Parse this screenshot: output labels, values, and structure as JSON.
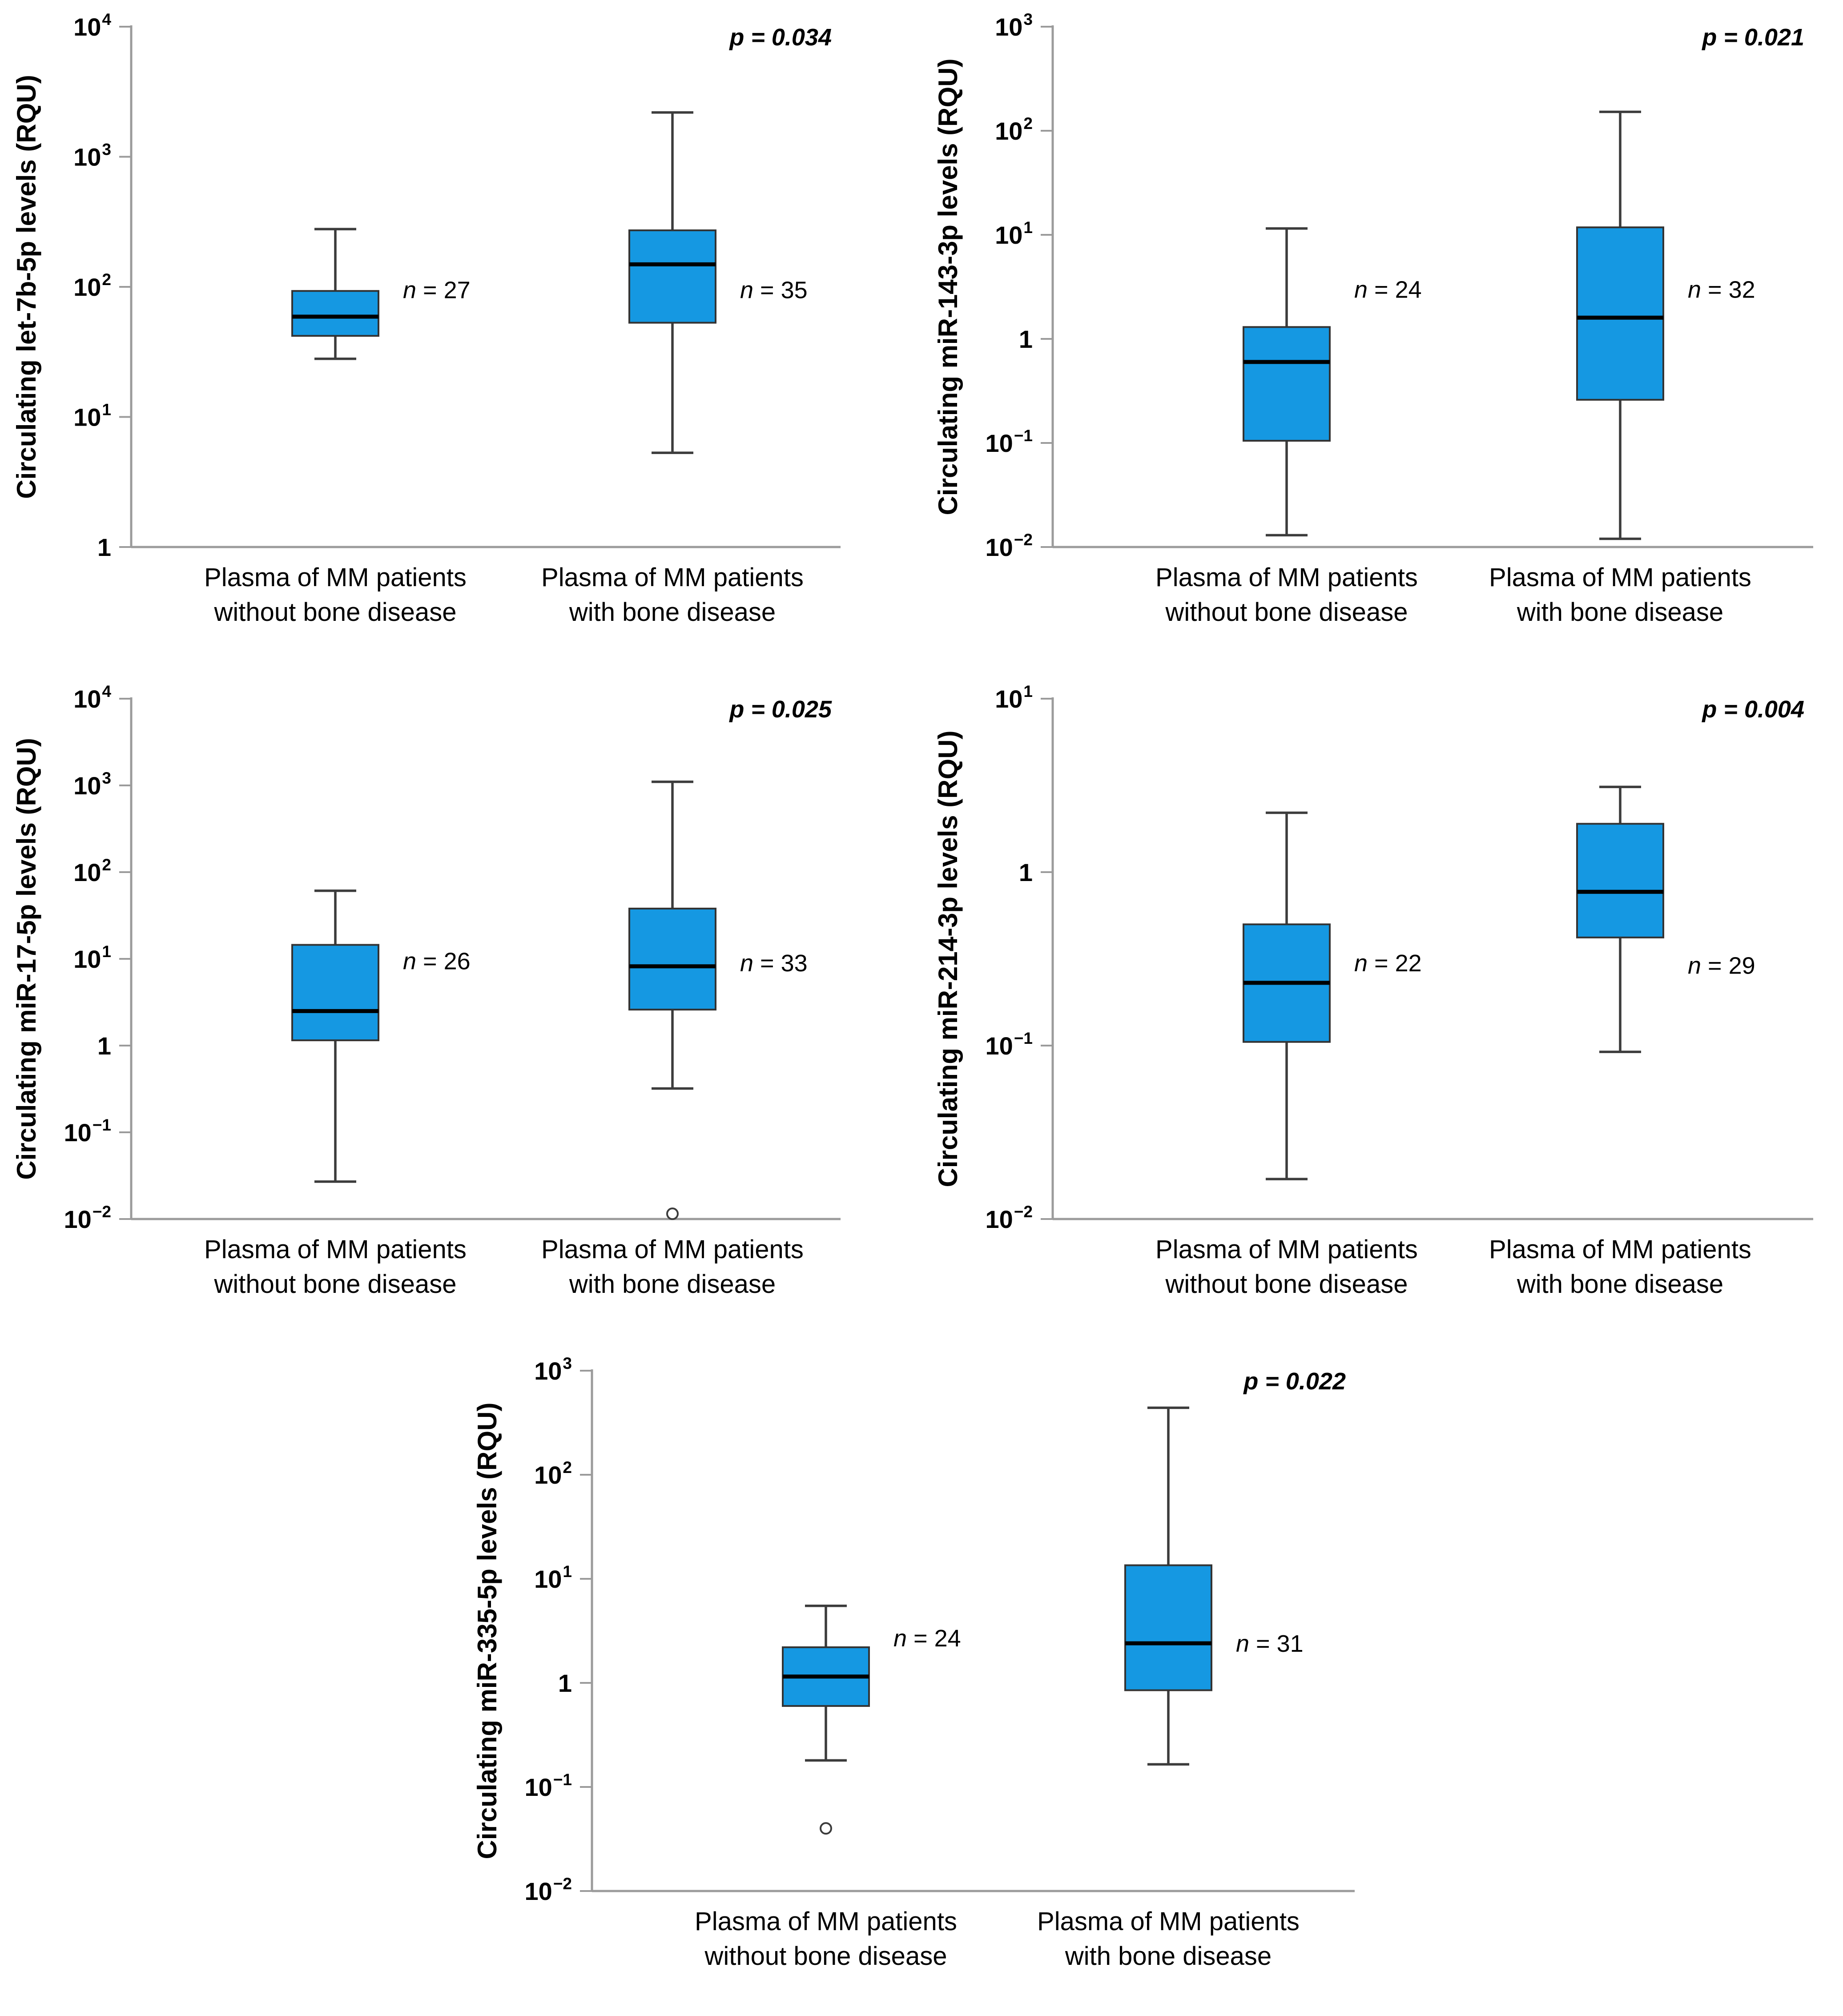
{
  "colors": {
    "box_fill": "#1598E2",
    "box_stroke": "#333333",
    "median": "#000000",
    "whisker": "#3C3C3C",
    "axis": "#9B9B9B",
    "text": "#000000",
    "outlier_fill": "#FFFFFF"
  },
  "chart_data": [
    {
      "type": "box",
      "ylabel": "Circulating let-7b-5p levels (RQU)",
      "p_label": "p = 0.034",
      "y_log_min": 0,
      "y_log_max": 4,
      "ytick_exponents": [
        4,
        3,
        2,
        1,
        0
      ],
      "layout": {
        "plot_right": 1890,
        "group_centers": [
          754,
          1512
        ],
        "legend": "none",
        "grid": "off"
      },
      "groups": [
        {
          "category_lines": [
            "Plasma of MM patients",
            "without bone disease"
          ],
          "n_label": "n = 27",
          "n_anchor_value": 95,
          "stats": {
            "whisker_low": 28,
            "q1": 42,
            "median": 59,
            "q3": 93,
            "whisker_high": 278
          },
          "outliers": []
        },
        {
          "category_lines": [
            "Plasma of MM patients",
            "with bone disease"
          ],
          "n_label": "n = 35",
          "n_anchor_value": 95,
          "stats": {
            "whisker_low": 5.3,
            "q1": 53,
            "median": 149,
            "q3": 272,
            "whisker_high": 2190
          },
          "outliers": []
        }
      ]
    },
    {
      "type": "box",
      "ylabel": "Circulating miR-143-3p levels (RQU)",
      "p_label": "p = 0.021",
      "y_log_min": -2,
      "y_log_max": 3,
      "ytick_exponents": [
        3,
        2,
        1,
        0,
        -1,
        -2
      ],
      "layout": {
        "plot_right": 2005,
        "group_centers": [
          821,
          1571
        ],
        "legend": "none",
        "grid": "off"
      },
      "groups": [
        {
          "category_lines": [
            "Plasma of MM patients",
            "without bone disease"
          ],
          "n_label": "n = 24",
          "n_anchor_value": 3.0,
          "stats": {
            "whisker_low": 0.013,
            "q1": 0.105,
            "median": 0.6,
            "q3": 1.3,
            "whisker_high": 11.5
          },
          "outliers": []
        },
        {
          "category_lines": [
            "Plasma of MM patients",
            "with bone disease"
          ],
          "n_label": "n = 32",
          "n_anchor_value": 3.0,
          "stats": {
            "whisker_low": 0.012,
            "q1": 0.26,
            "median": 1.6,
            "q3": 11.8,
            "whisker_high": 152
          },
          "outliers": []
        }
      ]
    },
    {
      "type": "box",
      "ylabel": "Circulating miR-17-5p levels (RQU)",
      "p_label": "p = 0.025",
      "y_log_min": -2,
      "y_log_max": 4,
      "ytick_exponents": [
        4,
        3,
        2,
        1,
        0,
        -1,
        -2
      ],
      "layout": {
        "plot_right": 1890,
        "group_centers": [
          754,
          1512
        ],
        "legend": "none",
        "grid": "off"
      },
      "groups": [
        {
          "category_lines": [
            "Plasma of MM patients",
            "without bone disease"
          ],
          "n_label": "n = 26",
          "n_anchor_value": 9.5,
          "stats": {
            "whisker_low": 0.027,
            "q1": 1.15,
            "median": 2.5,
            "q3": 14.5,
            "whisker_high": 61
          },
          "outliers": []
        },
        {
          "category_lines": [
            "Plasma of MM patients",
            "with bone disease"
          ],
          "n_label": "n = 33",
          "n_anchor_value": 9.0,
          "stats": {
            "whisker_low": 0.32,
            "q1": 2.6,
            "median": 8.2,
            "q3": 38,
            "whisker_high": 1100
          },
          "outliers": [
            0.0115
          ]
        }
      ]
    },
    {
      "type": "box",
      "ylabel": "Circulating miR-214-3p levels (RQU)",
      "p_label": "p = 0.004",
      "y_log_min": -2,
      "y_log_max": 1,
      "ytick_exponents": [
        1,
        0,
        -1,
        -2
      ],
      "layout": {
        "plot_right": 2005,
        "group_centers": [
          821,
          1571
        ],
        "legend": "none",
        "grid": "off"
      },
      "groups": [
        {
          "category_lines": [
            "Plasma of MM patients",
            "without bone disease"
          ],
          "n_label": "n = 22",
          "n_anchor_value": 0.3,
          "stats": {
            "whisker_low": 0.017,
            "q1": 0.105,
            "median": 0.23,
            "q3": 0.5,
            "whisker_high": 2.2
          },
          "outliers": []
        },
        {
          "category_lines": [
            "Plasma of MM patients",
            "with bone disease"
          ],
          "n_label": "n = 29",
          "n_anchor_value": 0.29,
          "stats": {
            "whisker_low": 0.092,
            "q1": 0.42,
            "median": 0.77,
            "q3": 1.9,
            "whisker_high": 3.1
          },
          "outliers": []
        }
      ]
    },
    {
      "type": "box",
      "ylabel": "Circulating miR-335-5p levels (RQU)",
      "p_label": "p = 0.022",
      "y_log_min": -2,
      "y_log_max": 3,
      "ytick_exponents": [
        3,
        2,
        1,
        0,
        -1,
        -2
      ],
      "layout": {
        "plot_right": 2010,
        "group_centers": [
          821,
          1591
        ],
        "legend": "none",
        "grid": "off"
      },
      "groups": [
        {
          "category_lines": [
            "Plasma of MM patients",
            "without bone disease"
          ],
          "n_label": "n = 24",
          "n_anchor_value": 2.7,
          "stats": {
            "whisker_low": 0.18,
            "q1": 0.6,
            "median": 1.15,
            "q3": 2.2,
            "whisker_high": 5.5
          },
          "outliers": [
            0.04
          ]
        },
        {
          "category_lines": [
            "Plasma of MM patients",
            "with bone disease"
          ],
          "n_label": "n = 31",
          "n_anchor_value": 2.4,
          "stats": {
            "whisker_low": 0.165,
            "q1": 0.85,
            "median": 2.4,
            "q3": 13.5,
            "whisker_high": 440
          },
          "outliers": []
        }
      ]
    }
  ]
}
